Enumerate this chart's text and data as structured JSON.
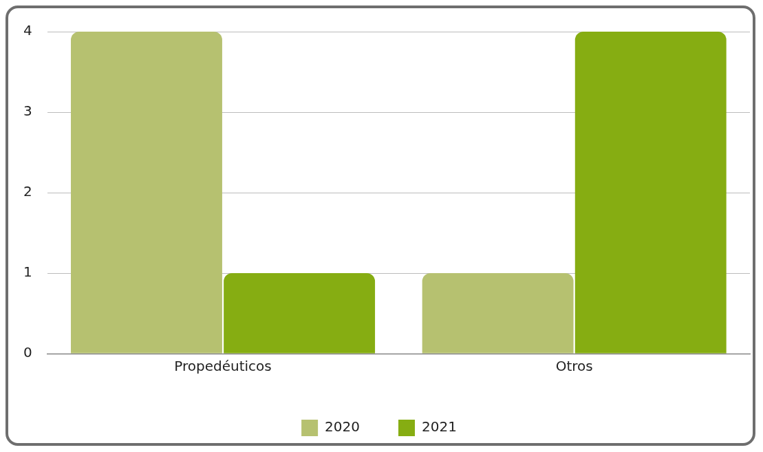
{
  "chart_data": {
    "type": "bar",
    "categories": [
      "Propedéuticos",
      "Otros"
    ],
    "series": [
      {
        "name": "2020",
        "color": "#b6c170",
        "values": [
          4,
          1
        ]
      },
      {
        "name": "2021",
        "color": "#86ad12",
        "values": [
          1,
          4
        ]
      }
    ],
    "ylim": [
      0,
      4
    ],
    "yticks": [
      0,
      1,
      2,
      3,
      4
    ],
    "grid": "y",
    "legend": "bottom"
  }
}
